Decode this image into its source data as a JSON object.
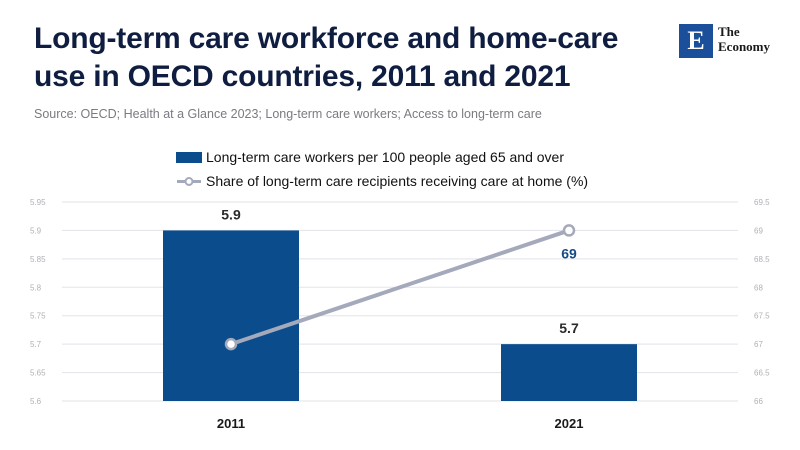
{
  "header": {
    "title_line1": "Long-term care workforce and home-care",
    "title_line2": "use in OECD countries, 2011 and 2021",
    "source": "Source: OECD; Health at a Glance 2023; Long-term care workers; Access to long-term care"
  },
  "logo": {
    "mark": "E",
    "line1": "The",
    "line2": "Economy",
    "color": "#1b4f9a"
  },
  "chart_data": {
    "type": "bar+line",
    "categories": [
      "2011",
      "2021"
    ],
    "series": [
      {
        "name": "Long-term care workers per 100 people aged 65 and over",
        "kind": "bar",
        "axis": "left",
        "values": [
          5.9,
          5.7
        ],
        "labels": [
          "5.9",
          "5.7"
        ],
        "color": "#0b4d8c"
      },
      {
        "name": "Share of long-term care recipients receiving care at home (%)",
        "kind": "line",
        "axis": "right",
        "values": [
          67,
          69
        ],
        "labels": [
          "",
          "69"
        ],
        "color": "#a4a9bb"
      }
    ],
    "y_left": {
      "min": 5.6,
      "max": 5.95,
      "ticks": [
        "5.6",
        "5.65",
        "5.7",
        "5.75",
        "5.8",
        "5.85",
        "5.9",
        "5.95"
      ]
    },
    "y_right": {
      "min": 66,
      "max": 69.5,
      "ticks": [
        "66",
        "66.5",
        "67",
        "67.5",
        "68",
        "68.5",
        "69",
        "69.5"
      ]
    },
    "grid": true,
    "legend_position": "top-center"
  }
}
